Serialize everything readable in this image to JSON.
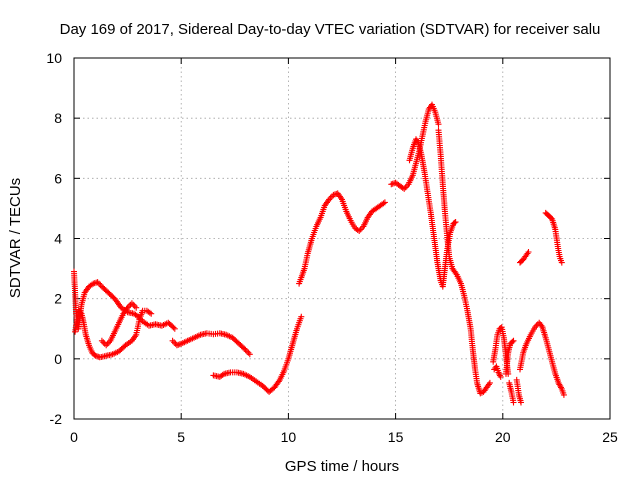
{
  "chart_data": {
    "type": "scatter",
    "title": "Day 169 of 2017, Sidereal Day-to-day VTEC variation (SDTVAR) for receiver salu",
    "xlabel": "GPS time / hours",
    "ylabel": "SDTVAR / TECUs",
    "xlim": [
      0,
      25
    ],
    "ylim": [
      -2,
      10
    ],
    "xticks": [
      0,
      5,
      10,
      15,
      20,
      25
    ],
    "yticks": [
      -2,
      0,
      2,
      4,
      6,
      8,
      10
    ],
    "grid": true,
    "marker": "plus",
    "series": [
      {
        "name": "SDTVAR",
        "color": "#ff0000",
        "segments": [
          [
            [
              0.0,
              2.9
            ],
            [
              0.05,
              2.2
            ],
            [
              0.1,
              1.5
            ],
            [
              0.2,
              1.0
            ],
            [
              0.35,
              1.8
            ],
            [
              0.5,
              2.2
            ],
            [
              0.7,
              2.4
            ],
            [
              0.9,
              2.5
            ],
            [
              1.1,
              2.55
            ],
            [
              1.3,
              2.4
            ],
            [
              1.6,
              2.2
            ],
            [
              1.9,
              2.0
            ],
            [
              2.2,
              1.7
            ],
            [
              2.5,
              1.55
            ],
            [
              2.8,
              1.5
            ],
            [
              3.0,
              1.4
            ],
            [
              3.2,
              1.25
            ],
            [
              3.5,
              1.1
            ],
            [
              3.8,
              1.15
            ],
            [
              4.1,
              1.1
            ],
            [
              4.4,
              1.2
            ],
            [
              4.7,
              1.0
            ]
          ],
          [
            [
              0.05,
              0.9
            ],
            [
              0.15,
              1.3
            ],
            [
              0.25,
              1.6
            ],
            [
              0.35,
              1.5
            ],
            [
              0.45,
              1.2
            ],
            [
              0.55,
              0.8
            ],
            [
              0.7,
              0.45
            ],
            [
              0.85,
              0.2
            ],
            [
              1.0,
              0.1
            ],
            [
              1.2,
              0.05
            ],
            [
              1.5,
              0.1
            ],
            [
              1.8,
              0.15
            ],
            [
              2.1,
              0.25
            ],
            [
              2.4,
              0.45
            ],
            [
              2.7,
              0.6
            ],
            [
              2.9,
              0.8
            ],
            [
              3.05,
              1.3
            ],
            [
              3.2,
              1.6
            ],
            [
              3.4,
              1.6
            ],
            [
              3.6,
              1.5
            ]
          ],
          [
            [
              1.3,
              0.6
            ],
            [
              1.5,
              0.45
            ],
            [
              1.7,
              0.6
            ],
            [
              1.9,
              0.9
            ],
            [
              2.1,
              1.2
            ],
            [
              2.3,
              1.5
            ],
            [
              2.5,
              1.7
            ],
            [
              2.7,
              1.85
            ],
            [
              2.9,
              1.7
            ]
          ],
          [
            [
              4.6,
              0.6
            ],
            [
              4.8,
              0.45
            ],
            [
              5.0,
              0.5
            ],
            [
              5.3,
              0.6
            ],
            [
              5.6,
              0.7
            ],
            [
              5.9,
              0.8
            ],
            [
              6.2,
              0.85
            ],
            [
              6.5,
              0.82
            ],
            [
              6.8,
              0.85
            ],
            [
              7.1,
              0.8
            ],
            [
              7.4,
              0.7
            ],
            [
              7.7,
              0.5
            ],
            [
              8.0,
              0.3
            ],
            [
              8.2,
              0.15
            ]
          ],
          [
            [
              6.5,
              -0.55
            ],
            [
              6.8,
              -0.6
            ],
            [
              7.0,
              -0.5
            ],
            [
              7.3,
              -0.45
            ],
            [
              7.6,
              -0.45
            ],
            [
              7.9,
              -0.5
            ],
            [
              8.2,
              -0.6
            ],
            [
              8.5,
              -0.75
            ],
            [
              8.8,
              -0.9
            ],
            [
              9.1,
              -1.1
            ],
            [
              9.35,
              -0.95
            ],
            [
              9.6,
              -0.7
            ],
            [
              9.8,
              -0.4
            ],
            [
              10.0,
              0.0
            ],
            [
              10.2,
              0.5
            ],
            [
              10.4,
              1.0
            ],
            [
              10.6,
              1.4
            ]
          ],
          [
            [
              10.5,
              2.5
            ],
            [
              10.6,
              2.7
            ],
            [
              10.75,
              3.0
            ],
            [
              10.9,
              3.5
            ],
            [
              11.1,
              4.0
            ],
            [
              11.3,
              4.4
            ],
            [
              11.5,
              4.7
            ],
            [
              11.7,
              5.1
            ],
            [
              11.9,
              5.3
            ],
            [
              12.1,
              5.45
            ],
            [
              12.3,
              5.5
            ],
            [
              12.5,
              5.3
            ],
            [
              12.7,
              4.9
            ],
            [
              12.9,
              4.6
            ],
            [
              13.1,
              4.35
            ],
            [
              13.3,
              4.25
            ],
            [
              13.5,
              4.4
            ],
            [
              13.7,
              4.7
            ],
            [
              13.9,
              4.9
            ],
            [
              14.1,
              5.0
            ],
            [
              14.3,
              5.1
            ],
            [
              14.5,
              5.2
            ]
          ],
          [
            [
              14.8,
              5.8
            ],
            [
              15.0,
              5.85
            ],
            [
              15.2,
              5.75
            ],
            [
              15.4,
              5.65
            ],
            [
              15.6,
              5.8
            ],
            [
              15.8,
              6.1
            ],
            [
              15.95,
              6.5
            ],
            [
              16.1,
              6.9
            ],
            [
              16.25,
              7.4
            ],
            [
              16.4,
              7.9
            ],
            [
              16.55,
              8.3
            ],
            [
              16.7,
              8.45
            ],
            [
              16.85,
              8.2
            ],
            [
              17.0,
              7.8
            ]
          ],
          [
            [
              15.65,
              6.6
            ],
            [
              15.8,
              7.0
            ],
            [
              15.95,
              7.3
            ],
            [
              16.05,
              7.2
            ],
            [
              16.2,
              6.8
            ],
            [
              16.35,
              6.2
            ],
            [
              16.5,
              5.5
            ],
            [
              16.65,
              4.8
            ],
            [
              16.8,
              4.0
            ],
            [
              16.95,
              3.2
            ],
            [
              17.1,
              2.6
            ],
            [
              17.2,
              2.4
            ],
            [
              17.3,
              3.0
            ],
            [
              17.4,
              3.6
            ],
            [
              17.55,
              4.2
            ],
            [
              17.7,
              4.5
            ],
            [
              17.8,
              4.55
            ]
          ],
          [
            [
              17.0,
              7.6
            ],
            [
              17.1,
              6.8
            ],
            [
              17.2,
              5.8
            ],
            [
              17.3,
              4.9
            ],
            [
              17.4,
              4.1
            ],
            [
              17.5,
              3.4
            ],
            [
              17.65,
              3.0
            ],
            [
              17.85,
              2.8
            ],
            [
              18.05,
              2.5
            ],
            [
              18.2,
              2.1
            ],
            [
              18.35,
              1.6
            ],
            [
              18.5,
              1.0
            ],
            [
              18.6,
              0.3
            ],
            [
              18.7,
              -0.3
            ],
            [
              18.8,
              -0.8
            ],
            [
              18.95,
              -1.15
            ],
            [
              19.1,
              -1.1
            ],
            [
              19.25,
              -0.95
            ],
            [
              19.4,
              -0.8
            ]
          ],
          [
            [
              19.55,
              -0.1
            ],
            [
              19.65,
              0.3
            ],
            [
              19.75,
              0.8
            ],
            [
              19.85,
              1.0
            ],
            [
              19.95,
              1.05
            ],
            [
              20.05,
              0.7
            ],
            [
              20.15,
              0.1
            ],
            [
              20.25,
              -0.5
            ]
          ],
          [
            [
              19.6,
              -0.35
            ],
            [
              19.7,
              -0.25
            ],
            [
              19.8,
              -0.45
            ],
            [
              19.9,
              -0.6
            ]
          ],
          [
            [
              20.15,
              -0.5
            ],
            [
              20.25,
              0.2
            ],
            [
              20.35,
              0.5
            ],
            [
              20.5,
              0.6
            ]
          ],
          [
            [
              20.3,
              -0.8
            ],
            [
              20.4,
              -1.1
            ],
            [
              20.5,
              -1.45
            ]
          ],
          [
            [
              20.65,
              -0.7
            ],
            [
              20.75,
              -1.2
            ],
            [
              20.85,
              -1.45
            ]
          ],
          [
            [
              20.8,
              -0.35
            ],
            [
              20.95,
              0.2
            ],
            [
              21.1,
              0.5
            ],
            [
              21.3,
              0.8
            ],
            [
              21.5,
              1.05
            ],
            [
              21.7,
              1.2
            ],
            [
              21.85,
              1.05
            ],
            [
              22.0,
              0.7
            ],
            [
              22.15,
              0.3
            ],
            [
              22.3,
              -0.1
            ],
            [
              22.45,
              -0.5
            ],
            [
              22.6,
              -0.8
            ],
            [
              22.75,
              -1.0
            ],
            [
              22.85,
              -1.2
            ]
          ],
          [
            [
              20.8,
              3.2
            ],
            [
              20.95,
              3.3
            ],
            [
              21.1,
              3.45
            ],
            [
              21.2,
              3.55
            ]
          ],
          [
            [
              22.0,
              4.85
            ],
            [
              22.15,
              4.75
            ],
            [
              22.3,
              4.65
            ],
            [
              22.45,
              4.3
            ],
            [
              22.55,
              3.8
            ],
            [
              22.65,
              3.4
            ],
            [
              22.75,
              3.2
            ]
          ]
        ]
      }
    ]
  }
}
